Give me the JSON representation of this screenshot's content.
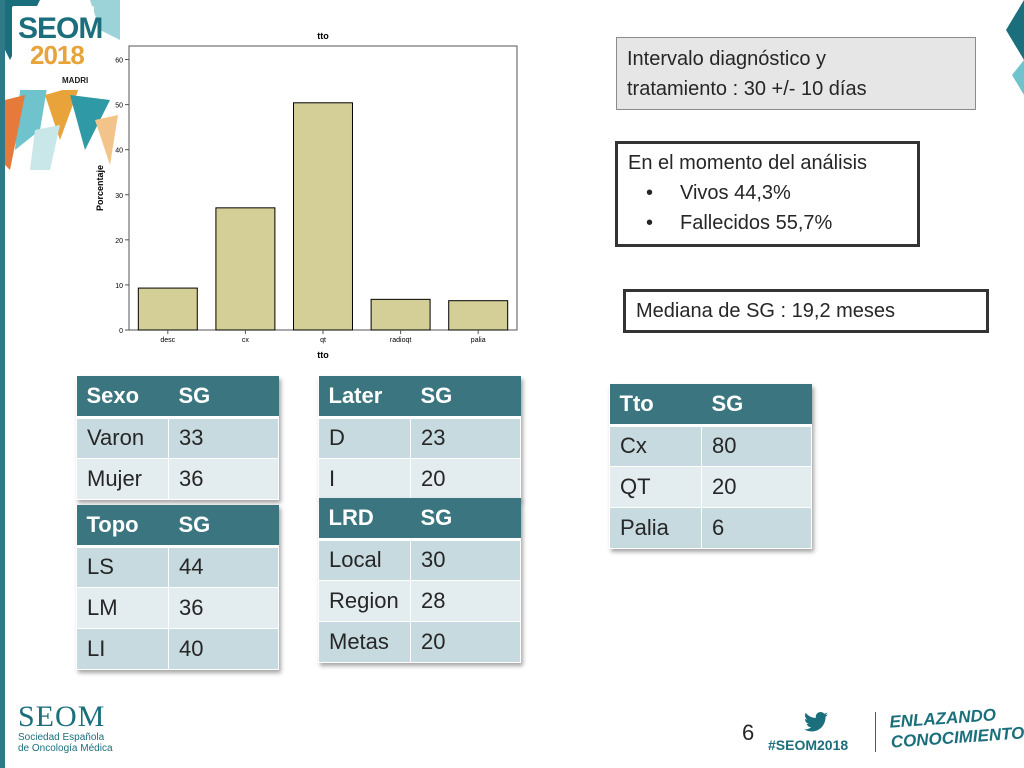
{
  "logo": {
    "name": "SEOM",
    "year": "2018",
    "city": "MADRI"
  },
  "chart_data": {
    "type": "bar",
    "title": "tto",
    "xlabel": "tto",
    "ylabel": "Porcentaje",
    "categories": [
      "desc",
      "cx",
      "qt",
      "radioqt",
      "palia"
    ],
    "values": [
      9.3,
      27.1,
      50.4,
      6.8,
      6.5
    ],
    "ylim": [
      0,
      63
    ],
    "yticks": [
      0,
      10,
      20,
      30,
      40,
      50,
      60
    ],
    "bar_color": "#d4cf96",
    "grid": false
  },
  "box_interval": {
    "line1": "Intervalo diagnóstico y",
    "line2": "tratamiento : 30 +/- 10 días"
  },
  "box_status": {
    "heading": "En el momento del análisis",
    "items": [
      "Vivos 44,3%",
      "Fallecidos 55,7%"
    ]
  },
  "box_median": {
    "text": "Mediana de SG : 19,2 meses"
  },
  "table_sexo": {
    "headers": [
      "Sexo",
      "SG"
    ],
    "rows": [
      [
        "Varon",
        "33"
      ],
      [
        "Mujer",
        "36"
      ]
    ]
  },
  "table_topo": {
    "headers": [
      "Topo",
      "SG"
    ],
    "rows": [
      [
        "LS",
        "44"
      ],
      [
        "LM",
        "36"
      ],
      [
        "LI",
        "40"
      ]
    ]
  },
  "table_later": {
    "headers": [
      "Later",
      "SG"
    ],
    "rows": [
      [
        "D",
        "23"
      ],
      [
        "I",
        "20"
      ]
    ]
  },
  "table_lrd": {
    "headers": [
      "LRD",
      "SG"
    ],
    "rows": [
      [
        "Local",
        "30"
      ],
      [
        "Region",
        "28"
      ],
      [
        "Metas",
        "20"
      ]
    ]
  },
  "table_tto": {
    "headers": [
      "Tto",
      "SG"
    ],
    "rows": [
      [
        "Cx",
        "80"
      ],
      [
        "QT",
        "20"
      ],
      [
        "Palia",
        "6"
      ]
    ]
  },
  "footer": {
    "org": "SEOM",
    "org_line1": "Sociedad  Española",
    "org_line2": "de Oncología Médica",
    "page_number": "6",
    "hashtag": "#SEOM2018",
    "slogan_line1": "ENLAZANDO",
    "slogan_line2": "CONOCIMIENTO"
  },
  "colors": {
    "teal": "#3b7580",
    "brand": "#1b6f7c",
    "accent": "#e8a33a"
  }
}
